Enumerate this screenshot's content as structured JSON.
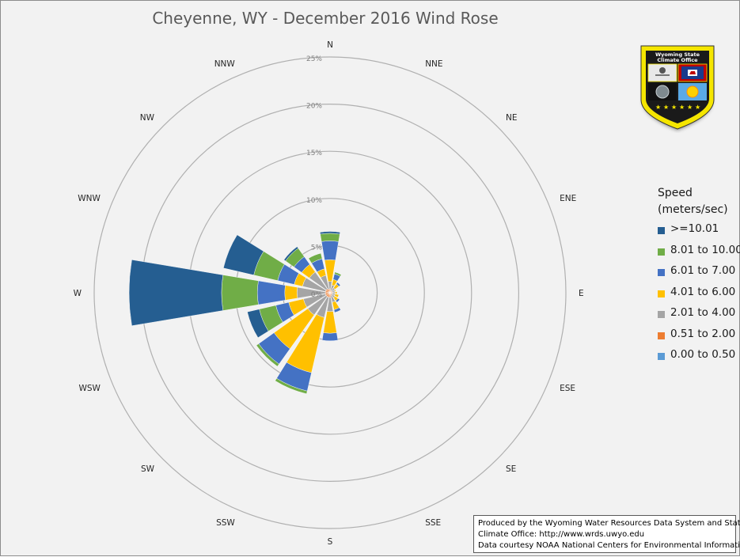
{
  "chart_data": {
    "type": "windrose",
    "title": "Cheyenne, WY - December 2016 Wind Rose",
    "directions": [
      "N",
      "NNE",
      "NE",
      "ENE",
      "E",
      "ESE",
      "SE",
      "SSE",
      "S",
      "SSW",
      "SW",
      "WSW",
      "W",
      "WNW",
      "NW",
      "NNW"
    ],
    "radial_ticks": [
      "0%",
      "5%",
      "10%",
      "15%",
      "20%",
      "25%"
    ],
    "radial_max": 25,
    "legend_title": "Speed (meters/sec)",
    "series": [
      {
        "name": "0.00 to 0.50",
        "color": "#5b9bd5",
        "values": [
          0.1,
          0.05,
          0.05,
          0.05,
          0.05,
          0.05,
          0.05,
          0.05,
          0.1,
          0.1,
          0.1,
          0.1,
          0.1,
          0.1,
          0.1,
          0.1
        ]
      },
      {
        "name": "0.51 to 2.00",
        "color": "#ed7d31",
        "values": [
          0.3,
          0.2,
          0.2,
          0.2,
          0.2,
          0.2,
          0.2,
          0.3,
          0.4,
          0.4,
          0.4,
          0.4,
          0.4,
          0.4,
          0.4,
          0.3
        ]
      },
      {
        "name": "2.01 to 4.00",
        "color": "#a5a5a5",
        "values": [
          0.8,
          0.6,
          0.4,
          0.3,
          0.3,
          0.3,
          0.4,
          0.7,
          1.5,
          2.2,
          2.4,
          2.4,
          3.0,
          2.5,
          2.2,
          1.5
        ]
      },
      {
        "name": "4.01 to 6.00",
        "color": "#ffc000",
        "values": [
          2.3,
          0.6,
          0.5,
          0.1,
          0.2,
          0.4,
          0.4,
          0.8,
          2.3,
          6.0,
          4.4,
          1.6,
          1.3,
          0.9,
          1.0,
          0.7
        ]
      },
      {
        "name": "6.01 to 7.00",
        "color": "#4472c4",
        "values": [
          2.0,
          0.6,
          0.2,
          0,
          0,
          0,
          0.2,
          0.3,
          0.8,
          2.0,
          2.0,
          1.4,
          2.9,
          1.8,
          1.0,
          1.1
        ]
      },
      {
        "name": "8.01 to 10.00",
        "color": "#70ad47",
        "values": [
          0.8,
          0.2,
          0,
          0,
          0,
          0,
          0,
          0,
          0,
          0.3,
          0.3,
          1.8,
          3.8,
          2.6,
          1.1,
          0.6
        ]
      },
      {
        "name": ">=10.01",
        "color": "#255e91",
        "values": [
          0.2,
          0,
          0,
          0,
          0,
          0,
          0,
          0,
          0,
          0,
          0,
          1.3,
          9.8,
          3.3,
          0.2,
          0
        ]
      }
    ]
  },
  "credits": {
    "line1": "Produced by the Wyoming Water Resources Data System and State",
    "line2": "Climate Office: http://www.wrds.uwyo.edu",
    "line3": "Data courtesy NOAA National Centers for Environmental Information"
  },
  "logo": {
    "text_line1": "Wyoming State",
    "text_line2": "Climate Office"
  }
}
